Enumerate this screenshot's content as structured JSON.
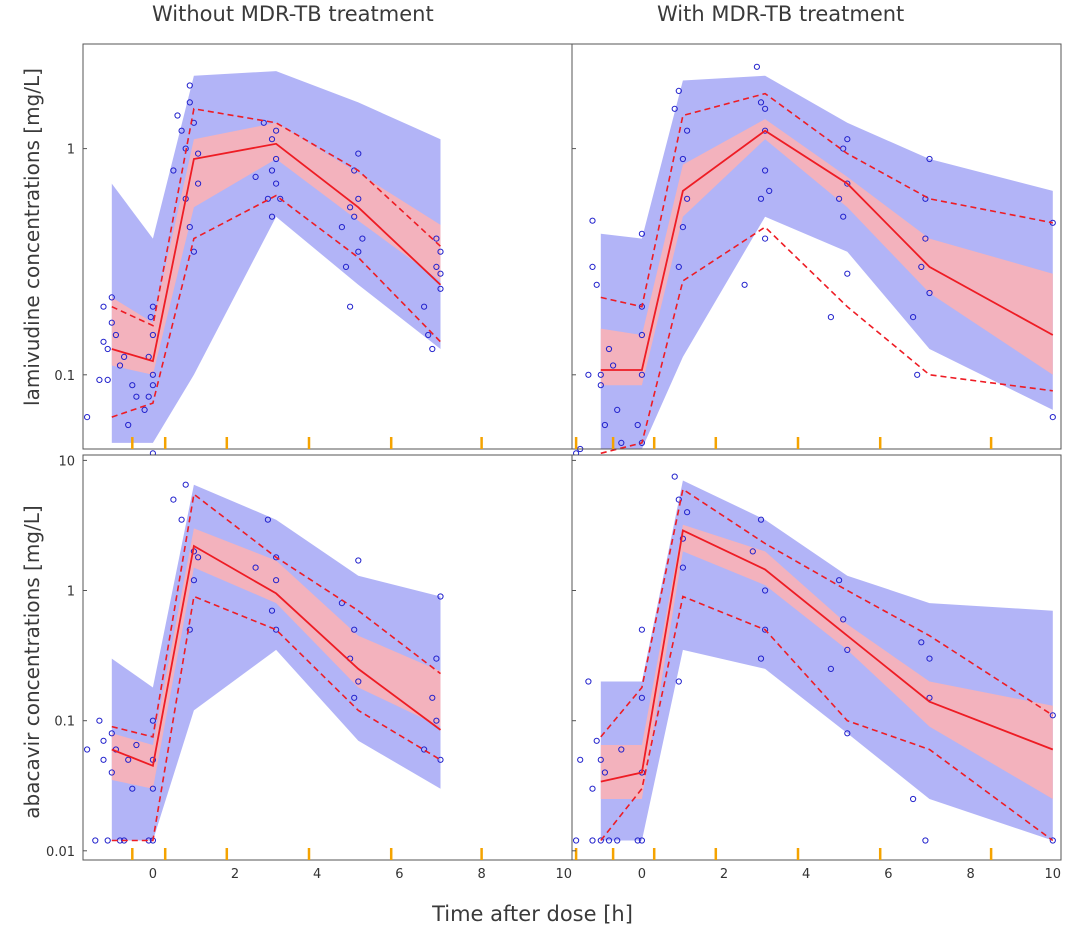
{
  "column_titles": [
    "Without MDR-TB treatment",
    "With MDR-TB treatment"
  ],
  "x_axis_label": "Time after dose [h]",
  "row_labels": [
    "lamivudine concentrations [mg/L]",
    "abacavir concentrations [mg/L]"
  ],
  "colors": {
    "pi_band": "#aeb0f7",
    "median_band": "#f9b1b6",
    "overlap_band": "#d774b3",
    "median_line": "#ee1c24",
    "percentile_line": "#ee1c24",
    "observations": "#2222cc",
    "bin_ticks": "#f5a300"
  },
  "chart_data": [
    {
      "id": "lamivudine_without",
      "type": "line",
      "title": "lamivudine, Without MDR-TB treatment",
      "xlim": [
        -1.7,
        10.2
      ],
      "ylim": [
        0.047,
        2.9
      ],
      "yscale": "log",
      "x_ticks": [],
      "y_ticks": [
        0.1,
        1
      ],
      "y_tick_labels": [
        "0.1",
        "1"
      ],
      "bin_x": [
        -0.5,
        0.3,
        1.8,
        3.8,
        5.8,
        8.0
      ],
      "bin_centers": [
        -1,
        0,
        1,
        3,
        5,
        7
      ],
      "pi_outer_upper": [
        0.7,
        0.4,
        2.1,
        2.2,
        1.6,
        1.1
      ],
      "pi_outer_lower": [
        0.05,
        0.05,
        0.1,
        0.5,
        0.25,
        0.13
      ],
      "median_band_upper": [
        0.22,
        0.17,
        1.1,
        1.3,
        0.78,
        0.46
      ],
      "median_band_lower": [
        0.11,
        0.1,
        0.55,
        0.9,
        0.48,
        0.26
      ],
      "median": [
        0.13,
        0.115,
        0.9,
        1.05,
        0.55,
        0.25
      ],
      "p95": [
        0.2,
        0.165,
        1.5,
        1.3,
        0.8,
        0.37
      ],
      "p05": [
        0.065,
        0.075,
        0.4,
        0.62,
        0.33,
        0.14
      ],
      "observations_x": [
        -1.6,
        -1.3,
        -1.2,
        -1.2,
        -1.1,
        -1.1,
        -1.0,
        -1.0,
        -0.9,
        -0.8,
        -0.7,
        -0.6,
        -0.5,
        -0.4,
        -0.2,
        -0.1,
        -0.1,
        -0.05,
        0,
        0,
        0,
        0,
        0,
        0.5,
        0.6,
        0.7,
        0.8,
        0.8,
        0.9,
        0.9,
        0.9,
        1.0,
        1.0,
        1.1,
        1.1,
        2.5,
        2.7,
        2.8,
        2.9,
        2.9,
        2.9,
        3.0,
        3.0,
        3.0,
        3.1,
        4.6,
        4.7,
        4.8,
        4.8,
        4.9,
        4.9,
        5.0,
        5.0,
        5.0,
        5.1,
        6.6,
        6.7,
        6.8,
        6.9,
        6.9,
        7.0,
        7.0,
        7.0
      ],
      "observations_y": [
        0.065,
        0.095,
        0.2,
        0.14,
        0.13,
        0.095,
        0.22,
        0.17,
        0.15,
        0.11,
        0.12,
        0.06,
        0.09,
        0.08,
        0.07,
        0.12,
        0.08,
        0.18,
        0.15,
        0.1,
        0.09,
        0.2,
        0.045,
        0.8,
        1.4,
        1.2,
        0.6,
        1.0,
        0.45,
        1.6,
        1.9,
        0.35,
        1.3,
        0.95,
        0.7,
        0.75,
        1.3,
        0.6,
        0.5,
        1.1,
        0.8,
        1.2,
        0.9,
        0.7,
        0.6,
        0.45,
        0.3,
        0.55,
        0.2,
        0.8,
        0.5,
        0.35,
        0.95,
        0.6,
        0.4,
        0.2,
        0.15,
        0.13,
        0.3,
        0.4,
        0.24,
        0.28,
        0.35
      ]
    },
    {
      "id": "lamivudine_with",
      "type": "line",
      "title": "lamivudine, With MDR-TB treatment",
      "xlim": [
        -1.7,
        10.2
      ],
      "ylim": [
        0.047,
        2.9
      ],
      "yscale": "log",
      "x_ticks": [],
      "y_ticks": [
        0.1,
        1
      ],
      "y_tick_labels": [
        "0.1",
        "1"
      ],
      "bin_x": [
        -1.6,
        -0.7,
        0.3,
        1.8,
        3.8,
        5.8,
        8.5
      ],
      "bin_centers": [
        -1,
        0,
        1,
        3,
        5,
        7,
        10
      ],
      "pi_outer_upper": [
        0.42,
        0.4,
        2.0,
        2.1,
        1.3,
        0.9,
        0.65
      ],
      "pi_outer_lower": [
        0.047,
        0.047,
        0.12,
        0.5,
        0.35,
        0.13,
        0.07
      ],
      "median_band_upper": [
        0.16,
        0.15,
        0.85,
        1.35,
        0.75,
        0.4,
        0.28
      ],
      "median_band_lower": [
        0.09,
        0.09,
        0.5,
        1.1,
        0.55,
        0.23,
        0.1
      ],
      "median": [
        0.105,
        0.105,
        0.65,
        1.2,
        0.7,
        0.3,
        0.15
      ],
      "p95": [
        0.22,
        0.2,
        1.4,
        1.75,
        0.95,
        0.6,
        0.47
      ],
      "p05": [
        0.045,
        0.05,
        0.26,
        0.45,
        0.2,
        0.1,
        0.085
      ],
      "observations_x": [
        -1.6,
        -1.5,
        -1.3,
        -1.2,
        -1.2,
        -1.1,
        -1.0,
        -1.0,
        -0.9,
        -0.8,
        -0.7,
        -0.6,
        -0.5,
        -0.1,
        0,
        0,
        0,
        0,
        0,
        0.8,
        0.9,
        0.9,
        1.0,
        1.0,
        1.1,
        1.1,
        2.5,
        2.8,
        2.9,
        2.9,
        3.0,
        3.0,
        3.0,
        3.0,
        3.1,
        4.6,
        4.8,
        4.9,
        4.9,
        5.0,
        5.0,
        5.0,
        6.6,
        6.7,
        6.8,
        6.9,
        6.9,
        7.0,
        7.0,
        10.0,
        10.0
      ],
      "observations_y": [
        0.045,
        0.047,
        0.1,
        0.3,
        0.48,
        0.25,
        0.1,
        0.09,
        0.06,
        0.13,
        0.11,
        0.07,
        0.05,
        0.06,
        0.2,
        0.1,
        0.15,
        0.05,
        0.42,
        1.5,
        0.3,
        1.8,
        0.45,
        0.9,
        0.6,
        1.2,
        0.25,
        2.3,
        0.6,
        1.6,
        1.2,
        0.8,
        0.4,
        1.5,
        0.65,
        0.18,
        0.6,
        1.0,
        0.5,
        1.1,
        0.28,
        0.7,
        0.18,
        0.1,
        0.3,
        0.6,
        0.4,
        0.9,
        0.23,
        0.47,
        0.065
      ]
    },
    {
      "id": "abacavir_without",
      "type": "line",
      "title": "abacavir, Without MDR-TB treatment",
      "xlim": [
        -1.7,
        10.2
      ],
      "ylim": [
        0.0085,
        11
      ],
      "yscale": "log",
      "x_ticks": [
        0,
        2,
        4,
        6,
        8,
        10
      ],
      "x_tick_labels": [
        "0",
        "2",
        "4",
        "6",
        "8",
        "10"
      ],
      "y_ticks": [
        0.01,
        0.1,
        1,
        10
      ],
      "y_tick_labels": [
        "0.01",
        "0.1",
        "1",
        "10"
      ],
      "bin_x": [
        -0.5,
        0.3,
        1.8,
        3.8,
        5.8,
        8.0
      ],
      "bin_centers": [
        -1,
        0,
        1,
        3,
        5,
        7
      ],
      "pi_outer_upper": [
        0.3,
        0.18,
        6.5,
        3.5,
        1.3,
        0.9
      ],
      "pi_outer_lower": [
        0.012,
        0.012,
        0.12,
        0.35,
        0.07,
        0.03
      ],
      "median_band_upper": [
        0.08,
        0.065,
        3.0,
        1.7,
        0.45,
        0.24
      ],
      "median_band_lower": [
        0.035,
        0.03,
        1.5,
        0.8,
        0.18,
        0.09
      ],
      "median": [
        0.06,
        0.045,
        2.2,
        0.95,
        0.25,
        0.085
      ],
      "p95": [
        0.09,
        0.075,
        5.5,
        1.8,
        0.7,
        0.23
      ],
      "p05": [
        0.012,
        0.012,
        0.9,
        0.5,
        0.12,
        0.05
      ],
      "observations_x": [
        -1.6,
        -1.4,
        -1.3,
        -1.2,
        -1.2,
        -1.1,
        -1.0,
        -1.0,
        -0.9,
        -0.8,
        -0.7,
        -0.6,
        -0.5,
        -0.4,
        -0.1,
        0,
        0,
        0,
        0,
        0.5,
        0.7,
        0.8,
        0.9,
        1.0,
        1.0,
        1.1,
        2.5,
        2.8,
        2.9,
        3.0,
        3.0,
        3.0,
        4.6,
        4.8,
        4.9,
        4.9,
        5.0,
        5.0,
        6.6,
        6.8,
        6.9,
        6.9,
        7.0,
        7.0
      ],
      "observations_y": [
        0.06,
        0.012,
        0.1,
        0.05,
        0.07,
        0.012,
        0.04,
        0.08,
        0.06,
        0.012,
        0.012,
        0.05,
        0.03,
        0.065,
        0.012,
        0.05,
        0.1,
        0.012,
        0.03,
        5.0,
        3.5,
        6.5,
        0.5,
        2.0,
        1.2,
        1.8,
        1.5,
        3.5,
        0.7,
        1.2,
        0.5,
        1.8,
        0.8,
        0.3,
        0.15,
        0.5,
        1.7,
        0.2,
        0.06,
        0.15,
        0.3,
        0.1,
        0.9,
        0.05
      ]
    },
    {
      "id": "abacavir_with",
      "type": "line",
      "title": "abacavir, With MDR-TB treatment",
      "xlim": [
        -1.7,
        10.2
      ],
      "ylim": [
        0.0085,
        11
      ],
      "yscale": "log",
      "x_ticks": [
        0,
        2,
        4,
        6,
        8,
        10
      ],
      "x_tick_labels": [
        "0",
        "2",
        "4",
        "6",
        "8",
        "10"
      ],
      "y_ticks": [
        0.01,
        0.1,
        1,
        10
      ],
      "y_tick_labels": [
        "0.01",
        "0.1",
        "1",
        "10"
      ],
      "bin_x": [
        -1.6,
        -0.7,
        0.3,
        1.8,
        3.8,
        5.8,
        8.5
      ],
      "bin_centers": [
        -1,
        0,
        1,
        3,
        5,
        7,
        10
      ],
      "pi_outer_upper": [
        0.2,
        0.2,
        7.0,
        3.5,
        1.3,
        0.8,
        0.7
      ],
      "pi_outer_lower": [
        0.012,
        0.012,
        0.35,
        0.25,
        0.08,
        0.025,
        0.012
      ],
      "median_band_upper": [
        0.065,
        0.065,
        3.2,
        2.0,
        0.55,
        0.2,
        0.13
      ],
      "median_band_lower": [
        0.025,
        0.025,
        2.0,
        1.1,
        0.35,
        0.09,
        0.025
      ],
      "median": [
        0.034,
        0.04,
        2.9,
        1.45,
        0.45,
        0.14,
        0.06
      ],
      "p95": [
        0.075,
        0.18,
        6.0,
        2.3,
        1.0,
        0.45,
        0.11
      ],
      "p05": [
        0.012,
        0.03,
        0.9,
        0.5,
        0.1,
        0.06,
        0.012
      ],
      "observations_x": [
        -1.6,
        -1.5,
        -1.3,
        -1.2,
        -1.2,
        -1.1,
        -1.0,
        -1.0,
        -0.9,
        -0.8,
        -0.6,
        -0.5,
        -0.1,
        0,
        0,
        0,
        0,
        0.8,
        0.9,
        0.9,
        1.0,
        1.0,
        1.1,
        2.7,
        2.9,
        2.9,
        3.0,
        3.0,
        4.6,
        4.8,
        4.9,
        5.0,
        5.0,
        6.6,
        6.8,
        6.9,
        7.0,
        7.0,
        10.0,
        10.0
      ],
      "observations_y": [
        0.012,
        0.05,
        0.2,
        0.012,
        0.03,
        0.07,
        0.012,
        0.05,
        0.04,
        0.012,
        0.012,
        0.06,
        0.012,
        0.5,
        0.15,
        0.012,
        0.04,
        7.5,
        5.0,
        0.2,
        2.5,
        1.5,
        4.0,
        2.0,
        3.5,
        0.3,
        1.0,
        0.5,
        0.25,
        1.2,
        0.6,
        0.08,
        0.35,
        0.025,
        0.4,
        0.012,
        0.15,
        0.3,
        0.012,
        0.11
      ]
    }
  ]
}
